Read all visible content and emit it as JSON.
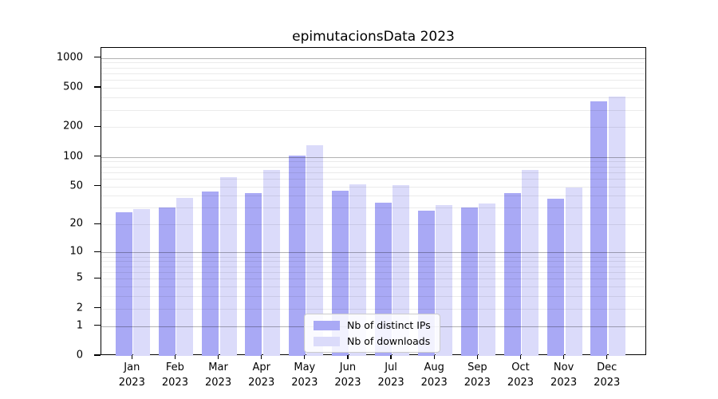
{
  "title": "epimutacionsData 2023",
  "legend": {
    "items": [
      {
        "label": "Nb of distinct IPs",
        "color": "#a9a9f5"
      },
      {
        "label": "Nb of downloads",
        "color": "#dbdbfa"
      }
    ]
  },
  "colors": {
    "distinct_ips_bar": "#a9a9f5",
    "downloads_bar": "#dbdbfa",
    "major_gridline": "rgba(0,0,0,0.30)",
    "minor_gridline": "rgba(0,0,0,0.08)",
    "axis": "#000000"
  },
  "chart_data": {
    "type": "bar",
    "title": "epimutacionsData 2023",
    "categories": [
      "Jan",
      "Feb",
      "Mar",
      "Apr",
      "May",
      "Jun",
      "Jul",
      "Aug",
      "Sep",
      "Oct",
      "Nov",
      "Dec"
    ],
    "year": "2023",
    "series": [
      {
        "name": "Nb of distinct IPs",
        "color": "#a9a9f5",
        "values": [
          27,
          30,
          44,
          43,
          104,
          45,
          34,
          28,
          30,
          43,
          37,
          368
        ]
      },
      {
        "name": "Nb of downloads",
        "color": "#dbdbfa",
        "values": [
          29,
          38,
          62,
          74,
          131,
          52,
          51,
          32,
          33,
          73,
          49,
          409
        ]
      }
    ],
    "yscale": "log1p",
    "ylabel": "",
    "xlabel": "",
    "ylim": [
      0,
      1265
    ],
    "yticks": [
      0,
      1,
      2,
      5,
      10,
      20,
      50,
      100,
      200,
      500,
      1000
    ],
    "ytick_labels": [
      "0",
      "1",
      "2",
      "5",
      "10",
      "20",
      "50",
      "100",
      "200",
      "500",
      "1000"
    ],
    "major_grid_values": [
      1,
      10,
      100,
      1000
    ],
    "minor_grid_values": [
      2,
      3,
      4,
      5,
      6,
      7,
      8,
      9,
      20,
      30,
      40,
      50,
      60,
      70,
      80,
      90,
      200,
      300,
      400,
      500,
      600,
      700,
      800,
      900
    ],
    "grid": true,
    "legend_position": "lower center"
  }
}
